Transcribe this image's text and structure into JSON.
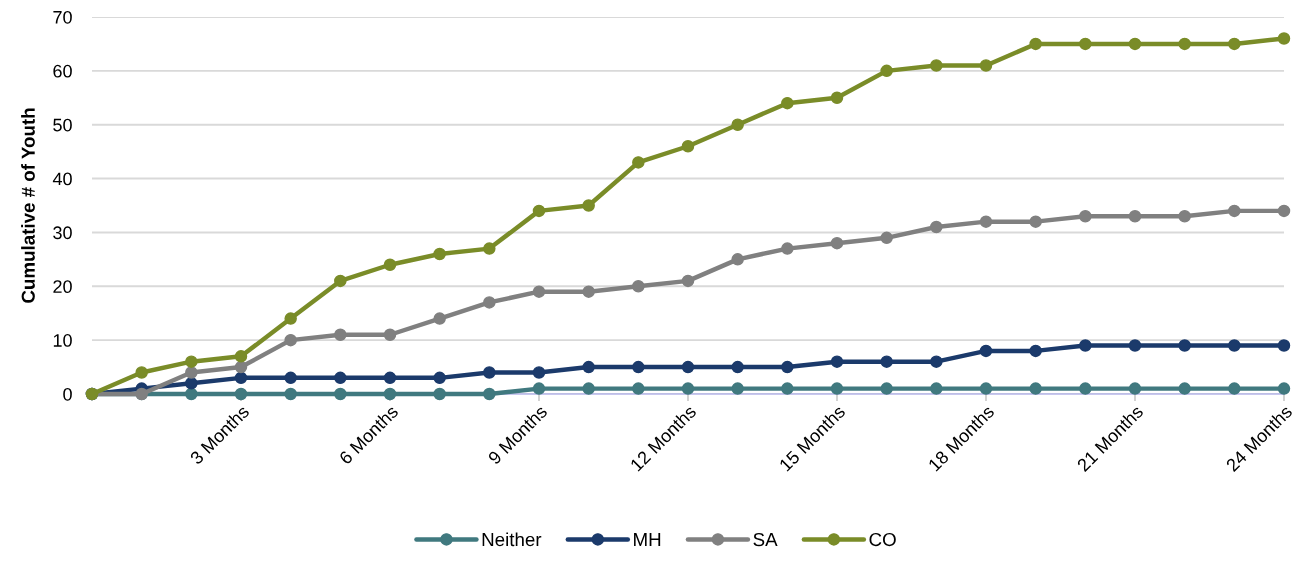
{
  "chart_data": {
    "type": "line",
    "ylabel": "Cumulative # of Youth",
    "categories": [
      null,
      null,
      null,
      "3 Months",
      null,
      null,
      "6 Months",
      null,
      null,
      "9 Months",
      null,
      null,
      "12 Months",
      null,
      null,
      "15 Months",
      null,
      null,
      "18 Months",
      null,
      null,
      "21 Months",
      null,
      null,
      "24 Months"
    ],
    "series": [
      {
        "name": "Neither",
        "color": "#40797f",
        "values": [
          0,
          0,
          0,
          0,
          0,
          0,
          0,
          0,
          0,
          1,
          1,
          1,
          1,
          1,
          1,
          1,
          1,
          1,
          1,
          1,
          1,
          1,
          1,
          1,
          1
        ]
      },
      {
        "name": "MH",
        "color": "#1b3a6b",
        "values": [
          0,
          1,
          2,
          3,
          3,
          3,
          3,
          3,
          4,
          4,
          5,
          5,
          5,
          5,
          5,
          6,
          6,
          6,
          8,
          8,
          9,
          9,
          9,
          9,
          9
        ]
      },
      {
        "name": "SA",
        "color": "#808080",
        "values": [
          0,
          0,
          4,
          5,
          10,
          11,
          11,
          14,
          17,
          19,
          19,
          20,
          21,
          25,
          27,
          28,
          29,
          31,
          32,
          32,
          33,
          33,
          33,
          34,
          34
        ]
      },
      {
        "name": "CO",
        "color": "#7a8c28",
        "values": [
          0,
          4,
          6,
          7,
          14,
          21,
          24,
          26,
          27,
          34,
          35,
          43,
          46,
          50,
          54,
          55,
          60,
          61,
          61,
          65,
          65,
          65,
          65,
          65,
          66
        ]
      }
    ],
    "ylim": [
      0,
      70
    ],
    "yticks": [
      0,
      10,
      20,
      30,
      40,
      50,
      60,
      70
    ],
    "grid": "y",
    "legend": "bottom",
    "marker": "circle",
    "line_style": "solid"
  }
}
